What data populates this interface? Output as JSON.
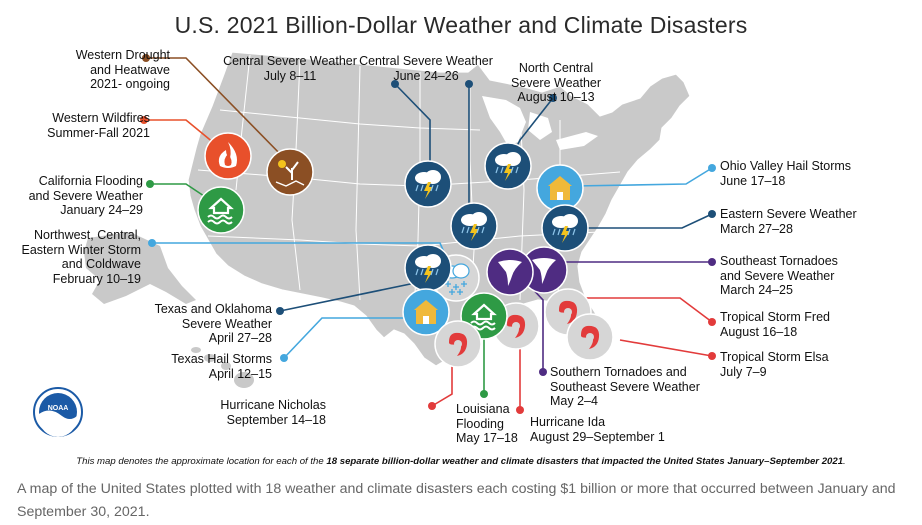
{
  "title": "U.S. 2021 Billion-Dollar Weather and Climate Disasters",
  "footnote": {
    "pre": "This map denotes the approximate location for each of the ",
    "bold": "18 separate billion-dollar weather and climate disasters that impacted the United States January–September 2021",
    "post": "."
  },
  "caption": "A map of the United States plotted with 18 weather and climate disasters each costing $1 billion or more that occurred between January and September 30, 2021.",
  "logo": {
    "text": "NOAA"
  },
  "colors": {
    "land": "#c9c9c9",
    "border": "#ffffff",
    "drought": "#8b4f24",
    "wildfire": "#e8502b",
    "flood": "#2e9a45",
    "severe": "#1d4f78",
    "hail": "#44a7de",
    "tornado": "#4f2c82",
    "hurricane": "#e23b3b",
    "winter": "#44a7de"
  },
  "events": [
    {
      "id": "western-drought",
      "type": "drought",
      "icon": "drought-icon",
      "lines": [
        "Western Drought",
        "and Heatwave",
        "2021- ongoing"
      ]
    },
    {
      "id": "western-wildfires",
      "type": "wildfire",
      "icon": "wildfire-icon",
      "lines": [
        "Western Wildfires",
        "Summer-Fall 2021"
      ]
    },
    {
      "id": "california-flooding",
      "type": "flood",
      "icon": "flood-icon",
      "lines": [
        "California Flooding",
        "and Severe Weather",
        "January 24–29"
      ]
    },
    {
      "id": "northwest-winter-storm",
      "type": "winter",
      "icon": "winter-storm-icon",
      "lines": [
        "Northwest, Central,",
        "Eastern Winter Storm",
        "and Coldwave",
        "February 10–19"
      ]
    },
    {
      "id": "texas-oklahoma-severe",
      "type": "severe",
      "icon": "severe-storm-icon",
      "lines": [
        "Texas and Oklahoma",
        "Severe Weather",
        "April 27–28"
      ]
    },
    {
      "id": "texas-hail",
      "type": "hail",
      "icon": "hail-icon",
      "lines": [
        "Texas Hail Storms",
        "April 12–15"
      ]
    },
    {
      "id": "central-severe-july",
      "type": "severe",
      "icon": "severe-storm-icon",
      "lines": [
        "Central Severe Weather",
        "July 8–11"
      ]
    },
    {
      "id": "central-severe-june",
      "type": "severe",
      "icon": "severe-storm-icon",
      "lines": [
        "Central Severe Weather",
        "June 24–26"
      ]
    },
    {
      "id": "north-central-severe",
      "type": "severe",
      "icon": "severe-storm-icon",
      "lines": [
        "North Central",
        "Severe Weather",
        "August 10–13"
      ]
    },
    {
      "id": "ohio-valley-hail",
      "type": "hail",
      "icon": "hail-icon",
      "lines": [
        "Ohio Valley Hail Storms",
        "June 17–18"
      ]
    },
    {
      "id": "eastern-severe",
      "type": "severe",
      "icon": "severe-storm-icon",
      "lines": [
        "Eastern Severe Weather",
        "March 27–28"
      ]
    },
    {
      "id": "southeast-tornadoes",
      "type": "tornado",
      "icon": "tornado-icon",
      "lines": [
        "Southeast Tornadoes",
        "and Severe Weather",
        "March 24–25"
      ]
    },
    {
      "id": "tropical-storm-fred",
      "type": "hurricane",
      "icon": "hurricane-icon",
      "lines": [
        "Tropical Storm Fred",
        "August 16–18"
      ]
    },
    {
      "id": "tropical-storm-elsa",
      "type": "hurricane",
      "icon": "hurricane-icon",
      "lines": [
        "Tropical Storm Elsa",
        "July 7–9"
      ]
    },
    {
      "id": "southern-tornadoes",
      "type": "tornado",
      "icon": "tornado-icon",
      "lines": [
        "Southern Tornadoes and",
        "Southeast Severe Weather",
        "May 2–4"
      ]
    },
    {
      "id": "hurricane-ida",
      "type": "hurricane",
      "icon": "hurricane-icon",
      "lines": [
        "Hurricane Ida",
        "August 29–September 1"
      ]
    },
    {
      "id": "louisiana-flooding",
      "type": "flood",
      "icon": "flood-icon",
      "lines": [
        "Louisiana",
        "Flooding",
        "May 17–18"
      ]
    },
    {
      "id": "hurricane-nicholas",
      "type": "hurricane",
      "icon": "hurricane-icon",
      "lines": [
        "Hurricane Nicholas",
        "September 14–18"
      ]
    }
  ]
}
